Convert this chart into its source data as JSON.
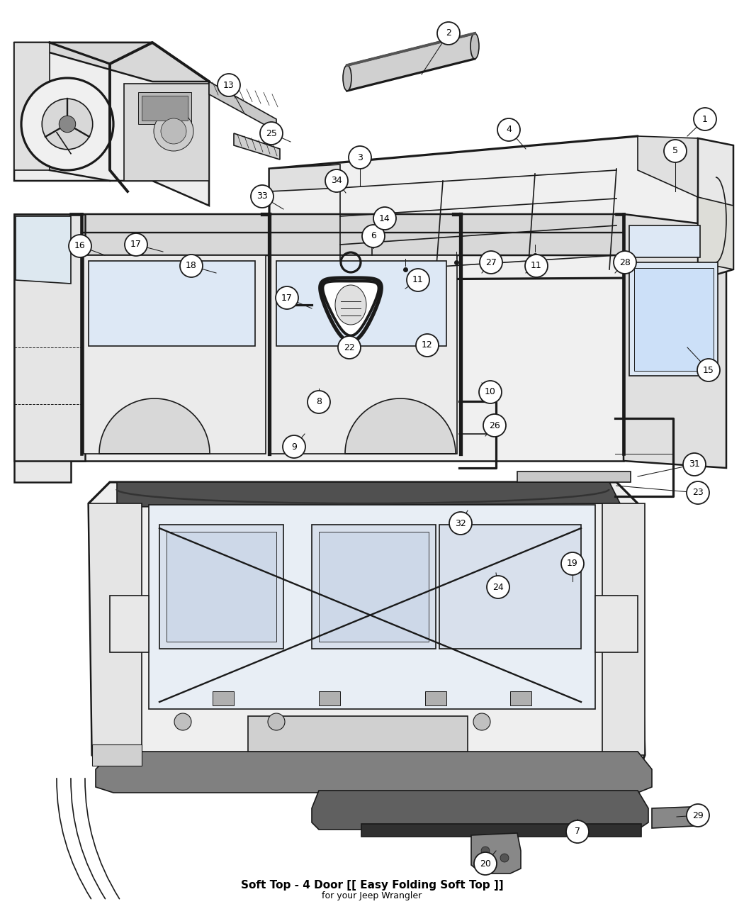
{
  "title": "Soft Top - 4 Door [[ Easy Folding Soft Top ]]",
  "subtitle": "for your Jeep Wrangler",
  "bg": "#ffffff",
  "figsize": [
    10.5,
    12.75
  ],
  "dpi": 100,
  "circles": [
    [
      1,
      995,
      168
    ],
    [
      2,
      633,
      47
    ],
    [
      3,
      508,
      222
    ],
    [
      4,
      718,
      183
    ],
    [
      5,
      953,
      213
    ],
    [
      6,
      527,
      333
    ],
    [
      7,
      815,
      1173
    ],
    [
      8,
      450,
      567
    ],
    [
      9,
      415,
      630
    ],
    [
      10,
      692,
      553
    ],
    [
      11,
      590,
      395
    ],
    [
      11,
      757,
      375
    ],
    [
      12,
      603,
      487
    ],
    [
      13,
      323,
      120
    ],
    [
      14,
      543,
      308
    ],
    [
      15,
      1000,
      522
    ],
    [
      16,
      113,
      347
    ],
    [
      17,
      192,
      345
    ],
    [
      17,
      405,
      420
    ],
    [
      18,
      270,
      375
    ],
    [
      19,
      808,
      795
    ],
    [
      20,
      685,
      1218
    ],
    [
      22,
      493,
      490
    ],
    [
      23,
      985,
      695
    ],
    [
      24,
      703,
      828
    ],
    [
      25,
      383,
      188
    ],
    [
      26,
      698,
      600
    ],
    [
      27,
      693,
      370
    ],
    [
      28,
      882,
      370
    ],
    [
      29,
      985,
      1150
    ],
    [
      31,
      980,
      655
    ],
    [
      32,
      650,
      738
    ],
    [
      33,
      370,
      277
    ],
    [
      34,
      475,
      255
    ]
  ],
  "leader_lines": [
    [
      995,
      168,
      970,
      192
    ],
    [
      633,
      47,
      595,
      105
    ],
    [
      508,
      222,
      508,
      262
    ],
    [
      718,
      183,
      742,
      210
    ],
    [
      953,
      213,
      953,
      270
    ],
    [
      527,
      333,
      527,
      350
    ],
    [
      815,
      1173,
      815,
      1155
    ],
    [
      450,
      567,
      450,
      548
    ],
    [
      415,
      630,
      430,
      612
    ],
    [
      692,
      553,
      680,
      545
    ],
    [
      590,
      395,
      572,
      407
    ],
    [
      757,
      375,
      742,
      385
    ],
    [
      543,
      308,
      530,
      330
    ],
    [
      323,
      120,
      345,
      160
    ],
    [
      692,
      553,
      680,
      540
    ],
    [
      1000,
      522,
      970,
      490
    ],
    [
      113,
      347,
      148,
      360
    ],
    [
      192,
      345,
      230,
      355
    ],
    [
      405,
      420,
      440,
      435
    ],
    [
      270,
      375,
      305,
      385
    ],
    [
      808,
      795,
      808,
      820
    ],
    [
      685,
      1218,
      700,
      1200
    ],
    [
      493,
      490,
      505,
      480
    ],
    [
      985,
      695,
      870,
      685
    ],
    [
      703,
      828,
      700,
      808
    ],
    [
      383,
      188,
      410,
      200
    ],
    [
      698,
      600,
      685,
      615
    ],
    [
      693,
      370,
      680,
      385
    ],
    [
      882,
      370,
      868,
      385
    ],
    [
      985,
      1150,
      955,
      1152
    ],
    [
      980,
      655,
      900,
      672
    ],
    [
      650,
      738,
      660,
      720
    ],
    [
      370,
      277,
      400,
      295
    ],
    [
      475,
      255,
      488,
      272
    ]
  ]
}
